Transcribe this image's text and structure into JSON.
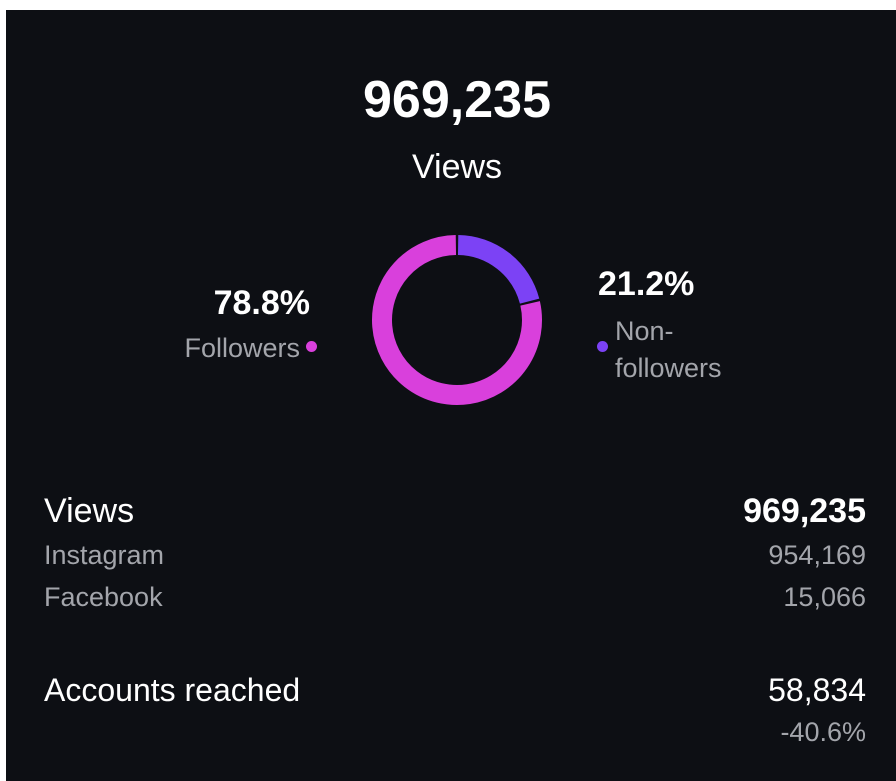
{
  "header": {
    "total": "969,235",
    "label": "Views"
  },
  "chart_data": {
    "type": "pie",
    "categories": [
      "Non-followers",
      "Followers"
    ],
    "values": [
      21.2,
      78.8
    ],
    "value_labels": [
      "21.2%",
      "78.8%"
    ],
    "colors": [
      "#7c42f5",
      "#d940dc"
    ]
  },
  "stats": [
    {
      "label": "Views",
      "value": "969,235",
      "rows": [
        {
          "label": "Instagram",
          "value": "954,169"
        },
        {
          "label": "Facebook",
          "value": "15,066"
        }
      ]
    },
    {
      "label": "Accounts reached",
      "value": "58,834",
      "change": "-40.6%"
    }
  ]
}
